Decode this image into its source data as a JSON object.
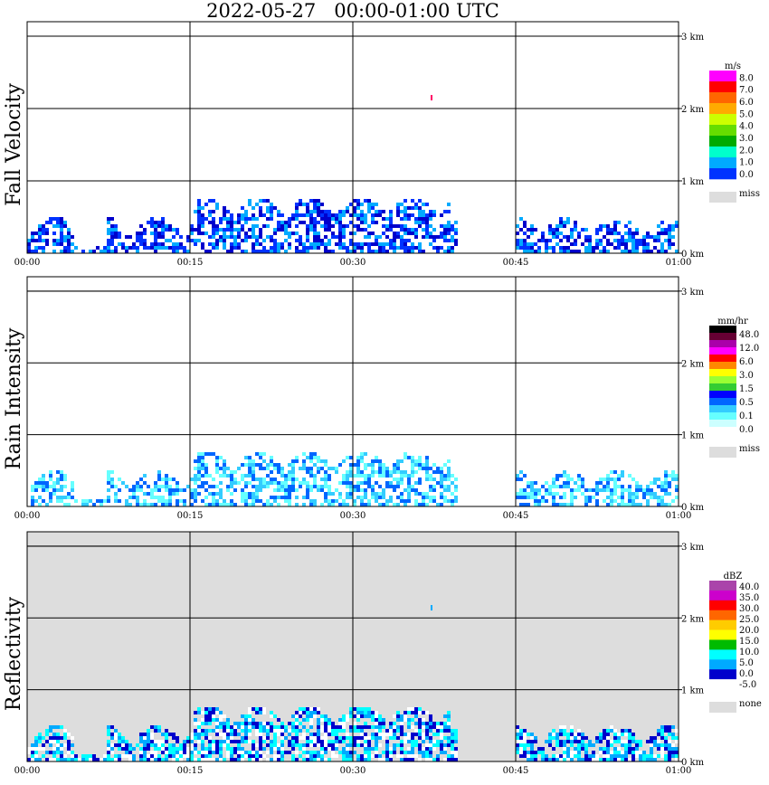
{
  "title": "2022-05-27   00:00-01:00 UTC",
  "chart_data": [
    {
      "type": "heatmap",
      "ylabel": "Fall Velocity",
      "x_ticks": [
        "00:00",
        "00:15",
        "00:30",
        "00:45",
        "01:00"
      ],
      "y_ticks": [
        "0 km",
        "1 km",
        "2 km",
        "3 km"
      ],
      "ylim_km": [
        0,
        3.0
      ],
      "background": "#ffffff",
      "legend": {
        "unit": "m/s",
        "labels": [
          "8.0",
          "7.0",
          "6.0",
          "5.0",
          "4.0",
          "3.0",
          "2.0",
          "1.0",
          "0.0"
        ],
        "colors": [
          "#ff00ff",
          "#ff0000",
          "#ff6600",
          "#ffaa00",
          "#ccff00",
          "#66dd00",
          "#00aa00",
          "#00ffcc",
          "#00aaff",
          "#0033ff"
        ],
        "miss_label": "miss",
        "miss_color": "#dddddd"
      }
    },
    {
      "type": "heatmap",
      "ylabel": "Rain Intensity",
      "x_ticks": [
        "00:00",
        "00:15",
        "00:30",
        "00:45",
        "01:00"
      ],
      "y_ticks": [
        "0 km",
        "1 km",
        "2 km",
        "3 km"
      ],
      "ylim_km": [
        0,
        3.0
      ],
      "background": "#ffffff",
      "legend": {
        "unit": "mm/hr",
        "labels": [
          "48.0",
          "12.0",
          "6.0",
          "3.0",
          "1.5",
          "0.5",
          "0.1",
          "0.0"
        ],
        "colors": [
          "#000000",
          "#660033",
          "#aa00aa",
          "#ff00ff",
          "#ff0000",
          "#ff8800",
          "#ffff00",
          "#99ff33",
          "#33cc33",
          "#0000ff",
          "#0066ff",
          "#33ccff",
          "#66ffff",
          "#ccffff",
          "#ffffff"
        ],
        "miss_label": "miss",
        "miss_color": "#dddddd"
      }
    },
    {
      "type": "heatmap",
      "ylabel": "Reflectivity",
      "x_ticks": [
        "00:00",
        "00:15",
        "00:30",
        "00:45",
        "01:00"
      ],
      "y_ticks": [
        "0 km",
        "1 km",
        "2 km",
        "3 km"
      ],
      "ylim_km": [
        0,
        3.0
      ],
      "background": "#dddddd",
      "legend": {
        "unit": "dBZ",
        "labels": [
          "40.0",
          "35.0",
          "30.0",
          "25.0",
          "20.0",
          "15.0",
          "10.0",
          "5.0",
          "0.0",
          "-5.0"
        ],
        "colors": [
          "#aa44aa",
          "#cc00cc",
          "#ff0000",
          "#ff6600",
          "#ffcc00",
          "#ffff00",
          "#00bb00",
          "#00ffff",
          "#00aaff",
          "#0000cc",
          "#ffffff"
        ],
        "miss_label": "none",
        "miss_color": "#dddddd"
      }
    }
  ]
}
